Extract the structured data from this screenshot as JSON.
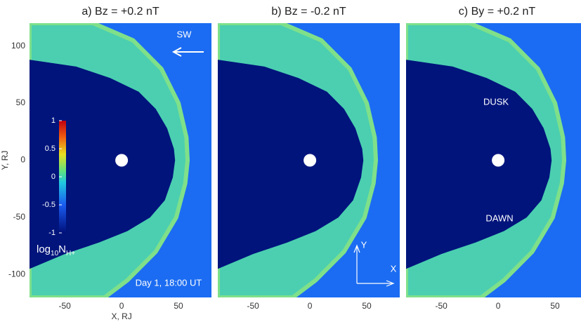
{
  "chart_data": [
    {
      "type": "field",
      "title": "a) Bz = +0.2 nT",
      "xlim": [
        -81,
        79
      ],
      "ylim": [
        -120,
        120
      ],
      "xticks": [
        -50,
        0,
        50
      ],
      "yticks": [
        -100,
        -50,
        0,
        50,
        100
      ],
      "xlabel": "X, RJ",
      "ylabel": "Y, RJ",
      "annotations": [
        "SW",
        "Day 1, 18:00 UT"
      ],
      "colorbar": {
        "clim": [
          -1,
          1
        ],
        "ticks": [
          1,
          0.5,
          0,
          -0.5,
          -1
        ],
        "label": {
          "base": "log",
          "sub": "10",
          "var": "N",
          "var_sub": "H+"
        }
      }
    },
    {
      "type": "field",
      "title": "b) Bz = -0.2 nT",
      "xlim": [
        -81,
        79
      ],
      "ylim": [
        -120,
        120
      ],
      "xticks": [
        -50,
        0,
        50
      ],
      "annotations": [
        "Y",
        "X"
      ]
    },
    {
      "type": "field",
      "title": "c) By = +0.2 nT",
      "xlim": [
        -81,
        79
      ],
      "ylim": [
        -120,
        120
      ],
      "xticks": [
        -50,
        0,
        50
      ],
      "annotations": [
        "DUSK",
        "DAWN"
      ]
    }
  ]
}
